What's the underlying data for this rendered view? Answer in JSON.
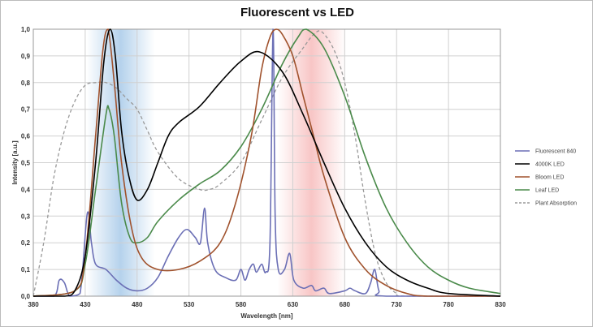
{
  "chart_data": {
    "type": "line",
    "title": "Fluorescent vs LED",
    "xlabel": "Wavelength [nm]",
    "ylabel": "Intensity [a.u.]",
    "xlim": [
      380,
      830
    ],
    "ylim": [
      0,
      1
    ],
    "xticks": [
      380,
      430,
      480,
      530,
      580,
      630,
      680,
      730,
      780,
      830
    ],
    "yticks": [
      "0,0",
      "0,1",
      "0,2",
      "0,3",
      "0,4",
      "0,5",
      "0,6",
      "0,7",
      "0,8",
      "0,9",
      "1,0"
    ],
    "grid": true,
    "legend_position": "right",
    "shaded_bands": [
      {
        "range": [
          431,
          497
        ],
        "color": "#5b9bd5"
      },
      {
        "range": [
          615,
          681
        ],
        "color": "#f08080"
      }
    ],
    "series": [
      {
        "name": "Fluorescent 840",
        "color": "#6b6fb5",
        "dash": false,
        "points": [
          [
            380,
            0
          ],
          [
            400,
            0
          ],
          [
            405,
            0.06
          ],
          [
            410,
            0.05
          ],
          [
            415,
            0
          ],
          [
            425,
            0.01
          ],
          [
            432,
            0.31
          ],
          [
            436,
            0.2
          ],
          [
            440,
            0.12
          ],
          [
            450,
            0.1
          ],
          [
            460,
            0.06
          ],
          [
            470,
            0.03
          ],
          [
            480,
            0.02
          ],
          [
            490,
            0.03
          ],
          [
            500,
            0.07
          ],
          [
            510,
            0.15
          ],
          [
            520,
            0.22
          ],
          [
            528,
            0.25
          ],
          [
            536,
            0.22
          ],
          [
            541,
            0.2
          ],
          [
            545,
            0.33
          ],
          [
            548,
            0.2
          ],
          [
            555,
            0.1
          ],
          [
            565,
            0.07
          ],
          [
            575,
            0.06
          ],
          [
            580,
            0.1
          ],
          [
            584,
            0.06
          ],
          [
            588,
            0.1
          ],
          [
            592,
            0.12
          ],
          [
            595,
            0.09
          ],
          [
            600,
            0.12
          ],
          [
            604,
            0.09
          ],
          [
            608,
            0.2
          ],
          [
            611,
            1.0
          ],
          [
            613,
            0.3
          ],
          [
            616,
            0.1
          ],
          [
            622,
            0.1
          ],
          [
            627,
            0.16
          ],
          [
            631,
            0.06
          ],
          [
            640,
            0.03
          ],
          [
            648,
            0.04
          ],
          [
            652,
            0.02
          ],
          [
            660,
            0.03
          ],
          [
            665,
            0.01
          ],
          [
            680,
            0.02
          ],
          [
            685,
            0.03
          ],
          [
            690,
            0.02
          ],
          [
            700,
            0.01
          ],
          [
            705,
            0.05
          ],
          [
            709,
            0.1
          ],
          [
            713,
            0.02
          ],
          [
            720,
            0
          ],
          [
            830,
            0
          ]
        ]
      },
      {
        "name": "4000K LED",
        "color": "#000000",
        "dash": false,
        "points": [
          [
            380,
            0
          ],
          [
            410,
            0
          ],
          [
            420,
            0.02
          ],
          [
            430,
            0.15
          ],
          [
            440,
            0.5
          ],
          [
            448,
            0.88
          ],
          [
            454,
            1.0
          ],
          [
            459,
            0.9
          ],
          [
            465,
            0.62
          ],
          [
            472,
            0.45
          ],
          [
            480,
            0.36
          ],
          [
            490,
            0.4
          ],
          [
            500,
            0.5
          ],
          [
            510,
            0.6
          ],
          [
            520,
            0.65
          ],
          [
            540,
            0.71
          ],
          [
            560,
            0.8
          ],
          [
            580,
            0.88
          ],
          [
            598,
            0.915
          ],
          [
            620,
            0.84
          ],
          [
            640,
            0.68
          ],
          [
            660,
            0.5
          ],
          [
            680,
            0.33
          ],
          [
            700,
            0.2
          ],
          [
            720,
            0.11
          ],
          [
            740,
            0.06
          ],
          [
            760,
            0.03
          ],
          [
            780,
            0.01
          ],
          [
            830,
            0
          ]
        ]
      },
      {
        "name": "Bloom LED",
        "color": "#a0522d",
        "dash": false,
        "points": [
          [
            380,
            0
          ],
          [
            420,
            0.02
          ],
          [
            430,
            0.15
          ],
          [
            440,
            0.6
          ],
          [
            447,
            0.92
          ],
          [
            452,
            1.0
          ],
          [
            458,
            0.8
          ],
          [
            465,
            0.5
          ],
          [
            475,
            0.25
          ],
          [
            485,
            0.14
          ],
          [
            500,
            0.1
          ],
          [
            520,
            0.1
          ],
          [
            540,
            0.13
          ],
          [
            560,
            0.2
          ],
          [
            575,
            0.35
          ],
          [
            590,
            0.6
          ],
          [
            600,
            0.85
          ],
          [
            608,
            0.97
          ],
          [
            614,
            1.0
          ],
          [
            620,
            0.98
          ],
          [
            630,
            0.9
          ],
          [
            640,
            0.75
          ],
          [
            650,
            0.6
          ],
          [
            660,
            0.45
          ],
          [
            680,
            0.22
          ],
          [
            700,
            0.1
          ],
          [
            720,
            0.04
          ],
          [
            740,
            0.01
          ],
          [
            760,
            0
          ],
          [
            830,
            0
          ]
        ]
      },
      {
        "name": "Leaf LED",
        "color": "#4a8a4a",
        "dash": false,
        "points": [
          [
            380,
            0
          ],
          [
            420,
            0.02
          ],
          [
            430,
            0.12
          ],
          [
            440,
            0.4
          ],
          [
            450,
            0.68
          ],
          [
            453,
            0.7
          ],
          [
            458,
            0.6
          ],
          [
            465,
            0.35
          ],
          [
            473,
            0.22
          ],
          [
            480,
            0.2
          ],
          [
            490,
            0.22
          ],
          [
            500,
            0.28
          ],
          [
            520,
            0.36
          ],
          [
            540,
            0.42
          ],
          [
            560,
            0.47
          ],
          [
            580,
            0.56
          ],
          [
            600,
            0.7
          ],
          [
            620,
            0.87
          ],
          [
            635,
            0.97
          ],
          [
            643,
            1.0
          ],
          [
            660,
            0.93
          ],
          [
            680,
            0.75
          ],
          [
            700,
            0.52
          ],
          [
            720,
            0.33
          ],
          [
            740,
            0.2
          ],
          [
            760,
            0.11
          ],
          [
            780,
            0.06
          ],
          [
            800,
            0.03
          ],
          [
            830,
            0.01
          ]
        ]
      },
      {
        "name": "Plant Absorption",
        "color": "#999999",
        "dash": true,
        "points": [
          [
            380,
            0
          ],
          [
            390,
            0.2
          ],
          [
            400,
            0.45
          ],
          [
            410,
            0.62
          ],
          [
            420,
            0.73
          ],
          [
            430,
            0.79
          ],
          [
            440,
            0.8
          ],
          [
            450,
            0.8
          ],
          [
            460,
            0.78
          ],
          [
            470,
            0.74
          ],
          [
            480,
            0.7
          ],
          [
            490,
            0.62
          ],
          [
            500,
            0.54
          ],
          [
            520,
            0.44
          ],
          [
            540,
            0.4
          ],
          [
            550,
            0.4
          ],
          [
            560,
            0.42
          ],
          [
            580,
            0.5
          ],
          [
            600,
            0.66
          ],
          [
            620,
            0.82
          ],
          [
            640,
            0.93
          ],
          [
            650,
            0.98
          ],
          [
            658,
            0.99
          ],
          [
            670,
            0.92
          ],
          [
            680,
            0.8
          ],
          [
            690,
            0.6
          ],
          [
            700,
            0.35
          ],
          [
            710,
            0.15
          ],
          [
            720,
            0.05
          ],
          [
            730,
            0.01
          ],
          [
            740,
            0
          ],
          [
            830,
            0
          ]
        ]
      }
    ]
  }
}
